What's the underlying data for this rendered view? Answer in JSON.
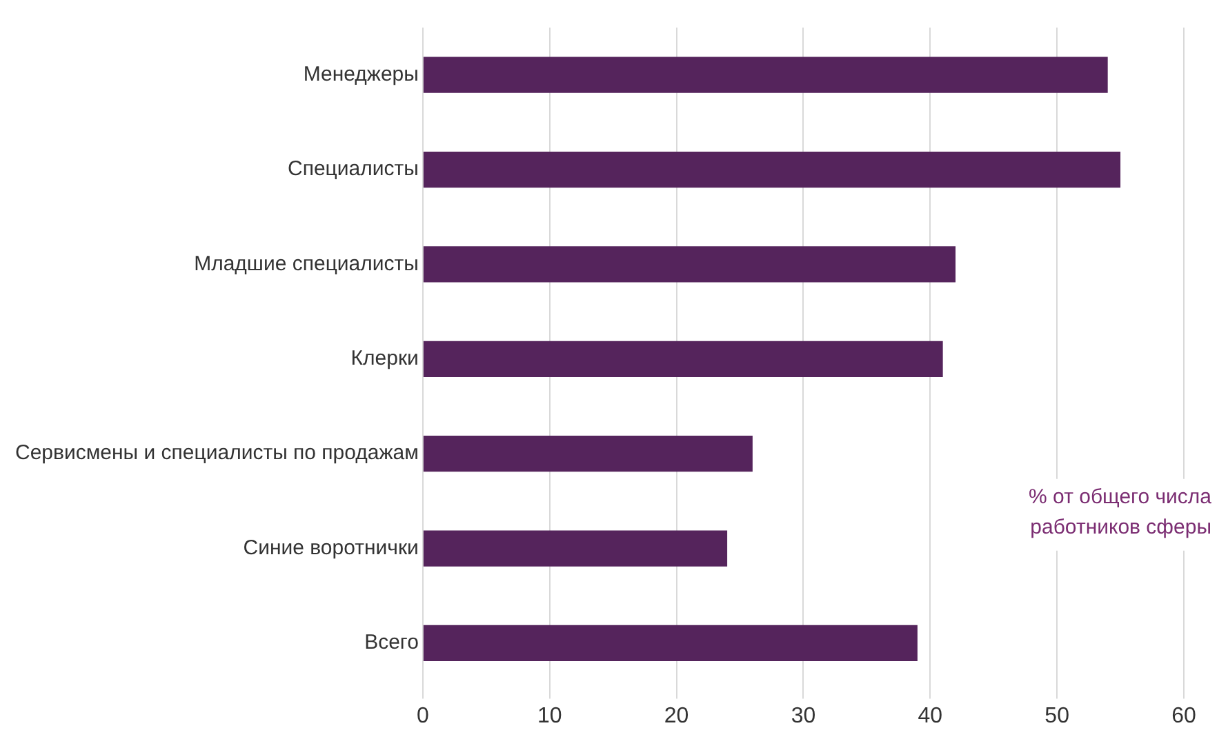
{
  "chart_data": {
    "type": "bar",
    "orientation": "horizontal",
    "categories": [
      "Менеджеры",
      "Специалисты",
      "Младшие специалисты",
      "Клерки",
      "Сервисмены и специалисты по продажам",
      "Синие воротнички",
      "Всего"
    ],
    "values": [
      54,
      55,
      42,
      41,
      26,
      24,
      39
    ],
    "color": "#55245c",
    "xlim": [
      0,
      60
    ],
    "xticks": [
      0,
      10,
      20,
      30,
      40,
      50,
      60
    ],
    "grid": "x",
    "annotations": [
      "% от общего числа работников сферы"
    ]
  }
}
